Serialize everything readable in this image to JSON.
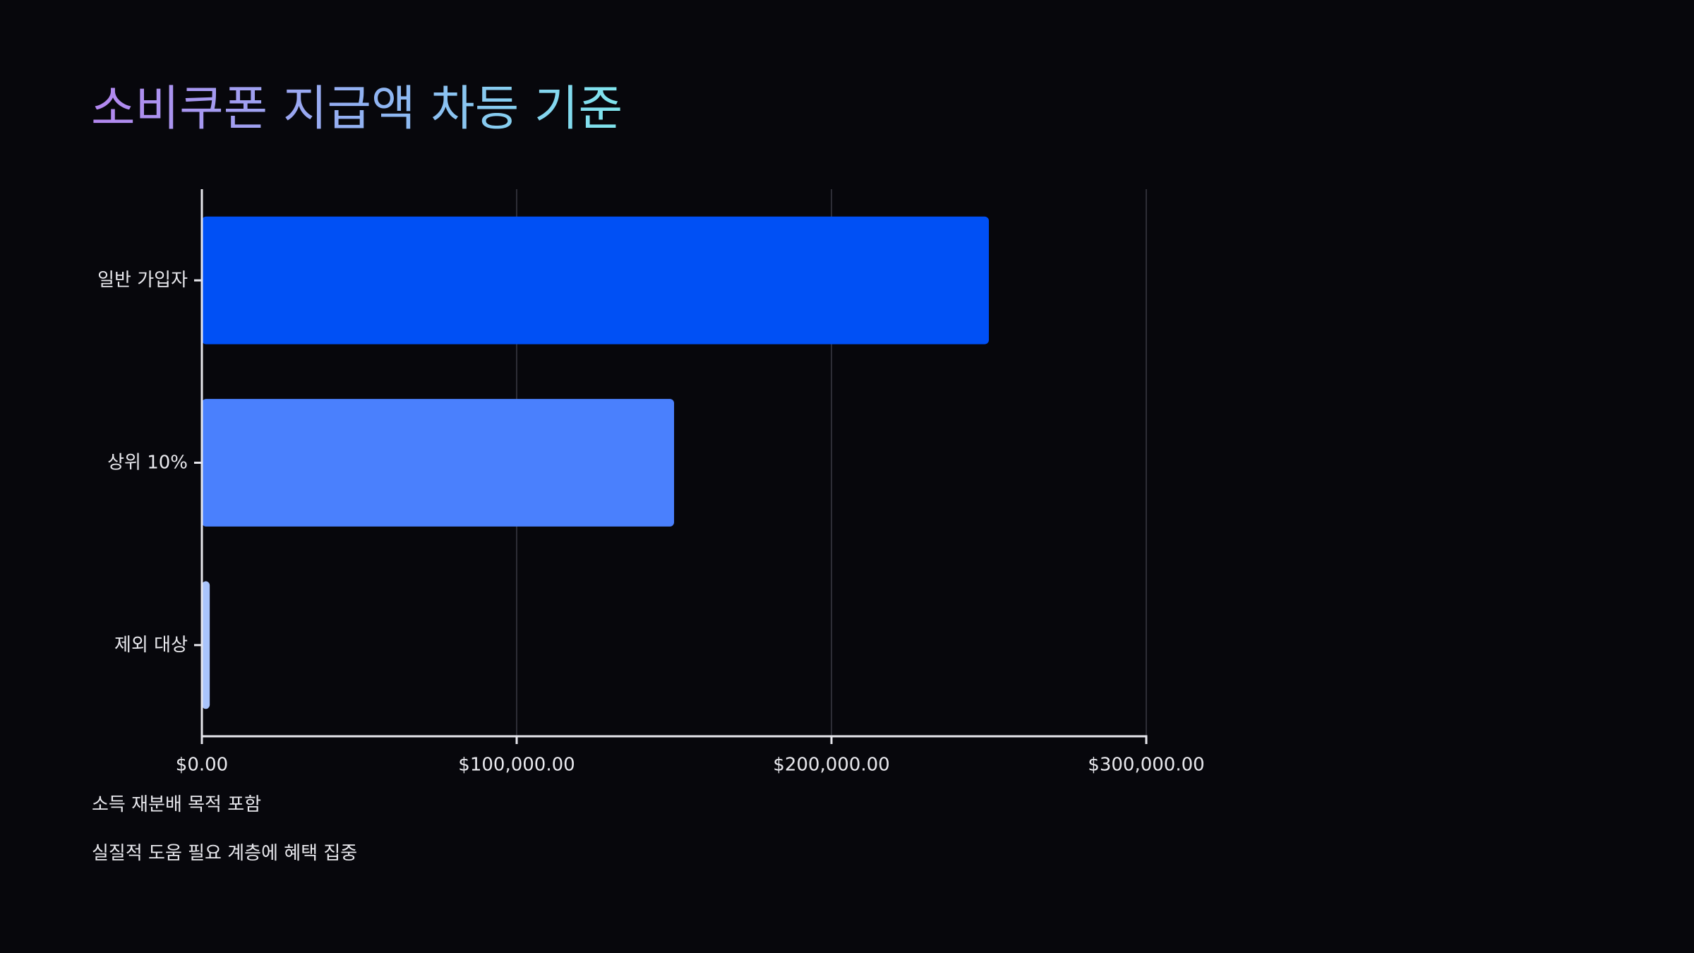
{
  "title": "소비쿠폰 지급액 차등 기준",
  "notes": [
    "소득 재분배 목적 포함",
    "실질적 도움 필요 계층에 혜택 집중"
  ],
  "chart_data": {
    "type": "bar",
    "orientation": "horizontal",
    "title": "소비쿠폰 지급액 차등 기준",
    "xlabel": "",
    "ylabel": "",
    "categories": [
      "일반 가입자",
      "상위 10%",
      "제외 대상"
    ],
    "values": [
      250000,
      150000,
      2500
    ],
    "xlim": [
      0,
      300000
    ],
    "x_ticks": [
      0,
      100000,
      200000,
      300000
    ],
    "x_tick_labels": [
      "$0.00",
      "$100,000.00",
      "$200,000.00",
      "$300,000.00"
    ],
    "bar_colors": [
      "#0050f5",
      "#4a80fd",
      "#a9c4fb"
    ],
    "grid": "vertical",
    "legend": "none"
  },
  "colors": {
    "background": "#07070c",
    "grid": "#3a3a44",
    "axis": "#e6e6ec",
    "text": "#e9e9ee"
  }
}
